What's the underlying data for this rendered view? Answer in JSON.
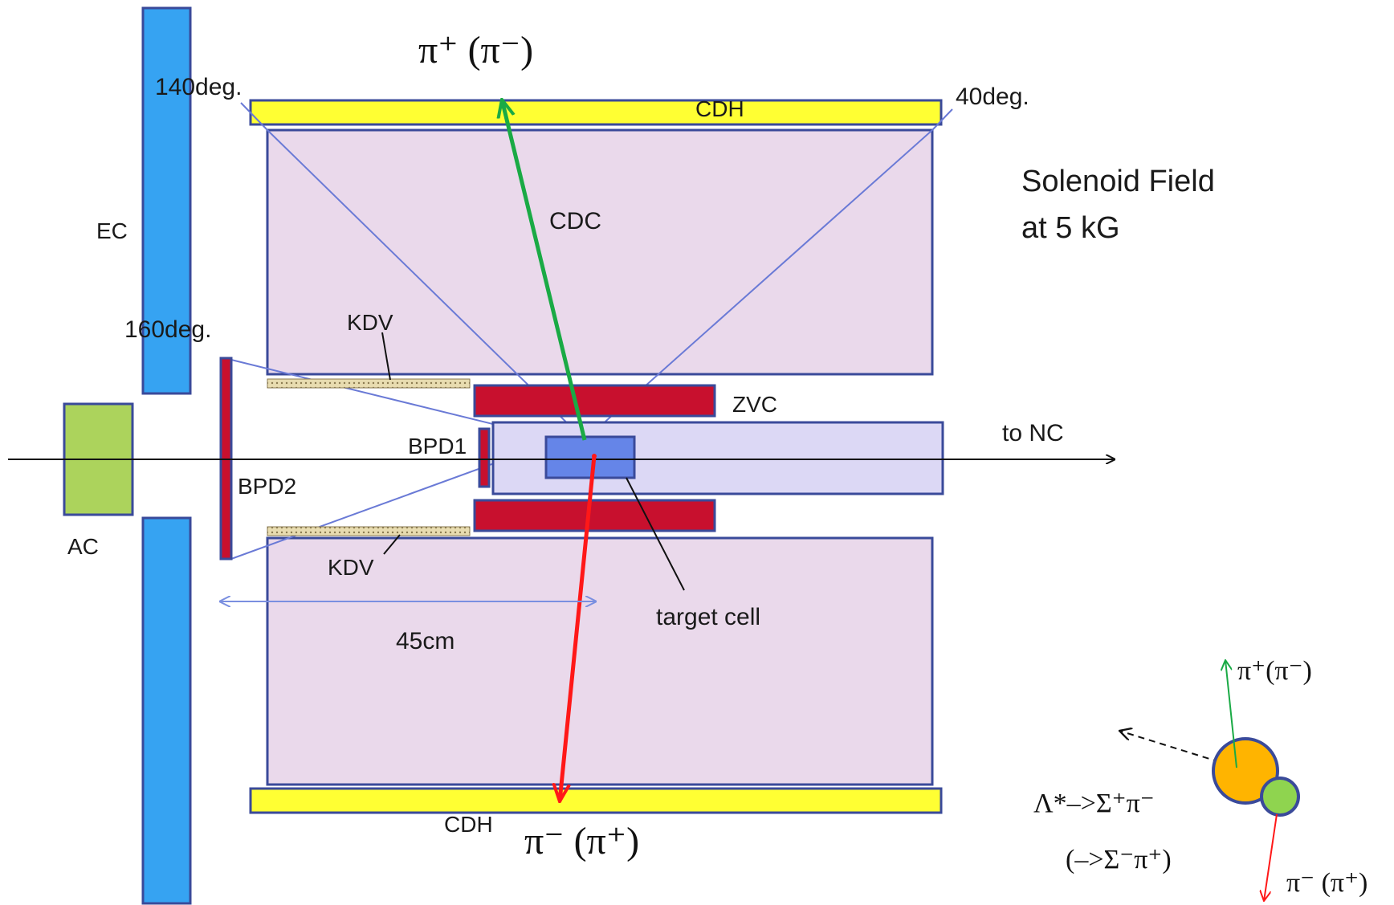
{
  "labels": {
    "top_pion": "π⁺ (π⁻)",
    "bottom_pion": "π⁻ (π⁺)",
    "deg140": "140deg.",
    "deg40": "40deg.",
    "deg160": "160deg.",
    "cdh_top": "CDH",
    "cdh_bottom": "CDH",
    "cdc": "CDC",
    "ec": "EC",
    "ac": "AC",
    "kdv_top": "KDV",
    "kdv_bottom": "KDV",
    "zvc": "ZVC",
    "bpd1": "BPD1",
    "bpd2": "BPD2",
    "to_nc": "to NC",
    "target_cell": "target cell",
    "length": "45cm",
    "field_line1": "Solenoid Field",
    "field_line2": "at 5 kG"
  },
  "inset": {
    "pi_plus": "π⁺(π⁻)",
    "pi_minus": "π⁻ (π⁺)",
    "decay_line1": "Λ*–>Σ⁺π⁻",
    "decay_line2": "(–>Σ⁻π⁺)"
  },
  "colors": {
    "ec_blue": "#36a3f2",
    "cdh_yellow": "#ffff33",
    "cdc_pink": "#ead9eb",
    "beamline_lavender": "#dcd8f5",
    "zvc_red": "#c8102e",
    "ac_green": "#acd35c",
    "target_blue": "#6585e8",
    "outline_blue": "#3a4a9a",
    "track_green": "#1aaa45",
    "track_red": "#ff1818",
    "inset_orange": "#ffb400",
    "inset_green": "#8fd44f"
  }
}
